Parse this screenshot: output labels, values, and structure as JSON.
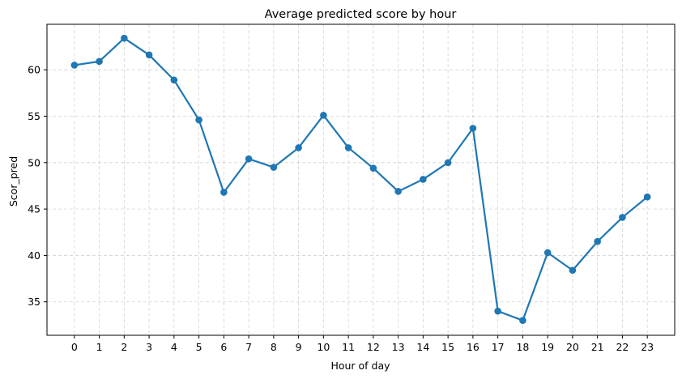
{
  "chart_data": {
    "type": "line",
    "title": "Average predicted score by hour",
    "xlabel": "Hour of day",
    "ylabel": "Scor_pred",
    "x": [
      0,
      1,
      2,
      3,
      4,
      5,
      6,
      7,
      8,
      9,
      10,
      11,
      12,
      13,
      14,
      15,
      16,
      17,
      18,
      19,
      20,
      21,
      22,
      23
    ],
    "series": [
      {
        "values": [
          60.5,
          60.9,
          63.4,
          61.6,
          58.9,
          54.6,
          46.8,
          50.4,
          49.5,
          51.6,
          55.1,
          51.6,
          49.4,
          46.9,
          48.2,
          50.0,
          53.7,
          34.0,
          33.0,
          40.3,
          38.4,
          41.5,
          44.1,
          46.3
        ]
      }
    ],
    "xlim": [
      -1.1,
      24.1
    ],
    "ylim": [
      31.4,
      64.9
    ],
    "yticks": [
      35,
      40,
      45,
      50,
      55,
      60
    ],
    "grid": true,
    "line_color": "#1f77b4",
    "marker": "circle"
  }
}
